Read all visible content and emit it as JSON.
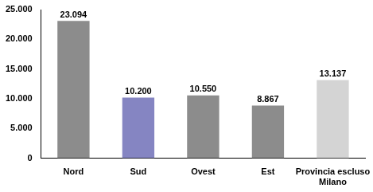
{
  "chart_data": {
    "type": "bar",
    "categories": [
      "Nord",
      "Sud",
      "Ovest",
      "Est",
      "Provincia escluso Milano"
    ],
    "values": [
      23094,
      10200,
      10550,
      8867,
      13137
    ],
    "value_labels": [
      "23.094",
      "10.200",
      "10.550",
      "8.867",
      "13.137"
    ],
    "colors": [
      "#8c8c8c",
      "#8585c2",
      "#8c8c8c",
      "#8c8c8c",
      "#d4d4d4"
    ],
    "ylim": [
      0,
      25000
    ],
    "yticks": [
      0,
      {
        "value": 5000,
        "label": "5.000"
      },
      {
        "value": 10000,
        "label": "10.000"
      },
      {
        "value": 15000,
        "label": "15.000"
      },
      {
        "value": 20000,
        "label": "20.000"
      },
      {
        "value": 25000,
        "label": "25.000"
      }
    ],
    "grid": false,
    "data_labels": true
  }
}
